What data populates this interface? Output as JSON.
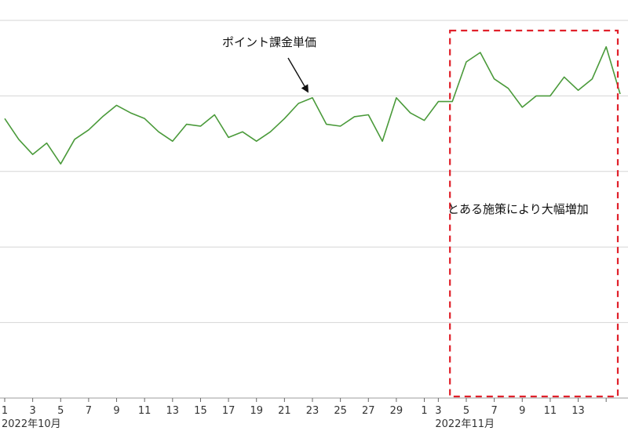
{
  "colors": {
    "series": "#4a9a3a",
    "highlight": "#e0202a",
    "annotation_arrow": "#111111"
  },
  "chart_data": {
    "type": "line",
    "title": "",
    "xlabel": "",
    "ylabel": "",
    "ylim": [
      0,
      100
    ],
    "grid": true,
    "y_gridlines": [
      20,
      40,
      60,
      80,
      100
    ],
    "y_tick_labels_shown": false,
    "x": [
      "2022-10-01",
      "2022-10-02",
      "2022-10-03",
      "2022-10-04",
      "2022-10-05",
      "2022-10-06",
      "2022-10-07",
      "2022-10-08",
      "2022-10-09",
      "2022-10-10",
      "2022-10-11",
      "2022-10-12",
      "2022-10-13",
      "2022-10-14",
      "2022-10-15",
      "2022-10-16",
      "2022-10-17",
      "2022-10-18",
      "2022-10-19",
      "2022-10-20",
      "2022-10-21",
      "2022-10-22",
      "2022-10-23",
      "2022-10-24",
      "2022-10-25",
      "2022-10-26",
      "2022-10-27",
      "2022-10-28",
      "2022-10-29",
      "2022-10-30",
      "2022-10-31",
      "2022-11-01",
      "2022-11-02",
      "2022-11-03",
      "2022-11-04",
      "2022-11-05",
      "2022-11-06",
      "2022-11-07",
      "2022-11-08",
      "2022-11-09",
      "2022-11-10",
      "2022-11-11",
      "2022-11-12",
      "2022-11-13",
      "2022-11-14"
    ],
    "series": [
      {
        "values": [
          74,
          68.5,
          64.5,
          67.5,
          62,
          68.5,
          71,
          74.5,
          77.5,
          75.5,
          74,
          70.5,
          68,
          72.5,
          72,
          75,
          69,
          70.5,
          68,
          70.5,
          74,
          78,
          79.5,
          72.5,
          72,
          74.5,
          75,
          68,
          79.5,
          75.5,
          73.5,
          78.5,
          78.5,
          89,
          91.5,
          84.5,
          82,
          77,
          80,
          80,
          85,
          81.5,
          84.5,
          93,
          80.5
        ]
      }
    ],
    "x_tick_labels": [
      "1",
      "3",
      "5",
      "7",
      "9",
      "11",
      "13",
      "15",
      "17",
      "19",
      "21",
      "23",
      "25",
      "27",
      "29",
      "1",
      "3",
      "5",
      "7",
      "9",
      "11",
      "13"
    ],
    "month_labels": [
      "2022年10月",
      "2022年11月"
    ],
    "annotations": [
      {
        "text": "ポイント課金単価",
        "points_to": "2022-10-23"
      },
      {
        "text": "とある施策により大幅増加",
        "region": [
          "2022-11-02",
          "2022-11-14"
        ]
      }
    ]
  }
}
